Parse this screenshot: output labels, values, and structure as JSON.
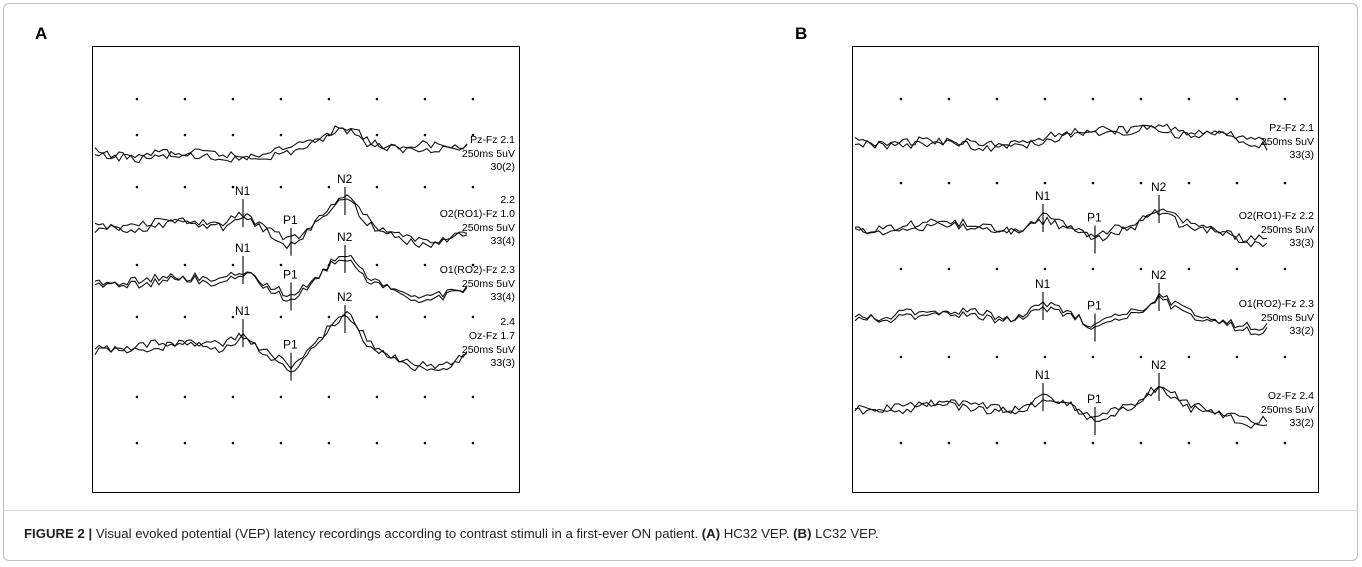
{
  "figure": {
    "caption": {
      "label": "FIGURE 2 |",
      "text_main": " Visual evoked potential (VEP) latency recordings according to contrast stimuli in a first-ever ON patient. ",
      "a_label": "(A)",
      "a_text": " HC32 VEP. ",
      "b_label": "(B)",
      "b_text": " LC32 VEP."
    },
    "panels": [
      {
        "letter": "A",
        "traces": [
          {
            "channel": "Pz-Fz",
            "value": "2.1",
            "scale": "250ms 5uV",
            "count": "30(2)",
            "peaks": []
          },
          {
            "channel": "O2(RO1)-Fz",
            "value": "1.0",
            "extra": "2.2",
            "scale": "250ms 5uV",
            "count": "33(4)",
            "peaks": [
              "N1",
              "P1",
              "N2"
            ]
          },
          {
            "channel": "O1(RO2)-Fz",
            "value": "2.3",
            "scale": "250ms 5uV",
            "count": "33(4)",
            "peaks": [
              "N1",
              "P1",
              "N2"
            ]
          },
          {
            "channel": "Oz-Fz",
            "value": "1.7",
            "extra": "2.4",
            "scale": "250ms 5uV",
            "count": "33(3)",
            "peaks": [
              "N1",
              "P1",
              "N2"
            ]
          }
        ]
      },
      {
        "letter": "B",
        "traces": [
          {
            "channel": "Pz-Fz",
            "value": "2.1",
            "scale": "250ms 5uV",
            "count": "33(3)",
            "peaks": []
          },
          {
            "channel": "O2(RO1)-Fz",
            "value": "2.2",
            "scale": "250ms 5uV",
            "count": "33(3)",
            "peaks": [
              "N1",
              "P1",
              "N2"
            ]
          },
          {
            "channel": "O1(RO2)-Fz",
            "value": "2.3",
            "scale": "250ms 5uV",
            "count": "33(2)",
            "peaks": [
              "N1",
              "P1",
              "N2"
            ]
          },
          {
            "channel": "Oz-Fz",
            "value": "2.4",
            "scale": "250ms 5uV",
            "count": "33(2)",
            "peaks": [
              "N1",
              "P1",
              "N2"
            ]
          }
        ]
      }
    ]
  }
}
